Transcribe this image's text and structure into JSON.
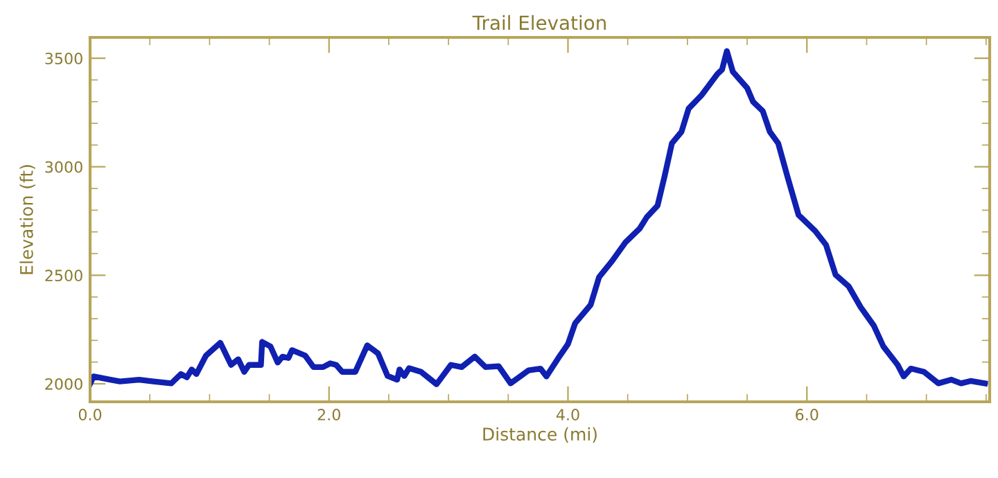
{
  "chart_data": {
    "type": "line",
    "title": "Trail Elevation",
    "xlabel": "Distance (mi)",
    "ylabel": "Elevation (ft)",
    "x": [
      0.0,
      0.03,
      0.17,
      0.25,
      0.41,
      0.53,
      0.68,
      0.76,
      0.81,
      0.85,
      0.89,
      0.97,
      1.09,
      1.18,
      1.24,
      1.29,
      1.33,
      1.43,
      1.44,
      1.51,
      1.57,
      1.61,
      1.66,
      1.69,
      1.8,
      1.87,
      1.95,
      2.01,
      2.06,
      2.11,
      2.22,
      2.32,
      2.41,
      2.49,
      2.57,
      2.59,
      2.63,
      2.67,
      2.77,
      2.9,
      3.02,
      3.11,
      3.22,
      3.31,
      3.42,
      3.52,
      3.67,
      3.77,
      3.82,
      3.92,
      4.0,
      4.06,
      4.19,
      4.26,
      4.37,
      4.48,
      4.6,
      4.66,
      4.75,
      4.81,
      4.87,
      4.95,
      5.01,
      5.12,
      5.25,
      5.29,
      5.33,
      5.38,
      5.5,
      5.55,
      5.63,
      5.69,
      5.76,
      5.84,
      5.93,
      6.07,
      6.16,
      6.24,
      6.35,
      6.45,
      6.56,
      6.64,
      6.76,
      6.81,
      6.87,
      6.98,
      7.1,
      7.21,
      7.29,
      7.37,
      7.49
    ],
    "series": [
      {
        "color": "#1020b0",
        "values": [
          2000,
          2034,
          2019,
          2011,
          2019,
          2011,
          2002,
          2045,
          2030,
          2066,
          2045,
          2130,
          2189,
          2087,
          2113,
          2055,
          2087,
          2087,
          2193,
          2172,
          2098,
          2125,
          2119,
          2155,
          2130,
          2077,
          2077,
          2094,
          2087,
          2055,
          2055,
          2177,
          2140,
          2036,
          2019,
          2066,
          2036,
          2072,
          2055,
          1998,
          2087,
          2077,
          2125,
          2077,
          2081,
          2002,
          2062,
          2070,
          2034,
          2119,
          2183,
          2279,
          2364,
          2491,
          2566,
          2651,
          2715,
          2768,
          2821,
          2959,
          3108,
          3161,
          3268,
          3331,
          3427,
          3448,
          3533,
          3438,
          3363,
          3299,
          3257,
          3161,
          3108,
          2949,
          2778,
          2704,
          2640,
          2502,
          2449,
          2353,
          2268,
          2172,
          2087,
          2034,
          2070,
          2055,
          2002,
          2019,
          2002,
          2013,
          2002
        ]
      }
    ],
    "xlim": [
      0,
      7.53
    ],
    "ylim": [
      1917,
      3596
    ],
    "xticks": [
      {
        "value": 0,
        "label": "0.0"
      },
      {
        "value": 2,
        "label": "2.0"
      },
      {
        "value": 4,
        "label": "4.0"
      },
      {
        "value": 6,
        "label": "6.0"
      }
    ],
    "yticks": [
      2000,
      2500,
      3000,
      3500
    ],
    "grid": false,
    "legend": false,
    "marker": "none",
    "line_style": "solid"
  }
}
